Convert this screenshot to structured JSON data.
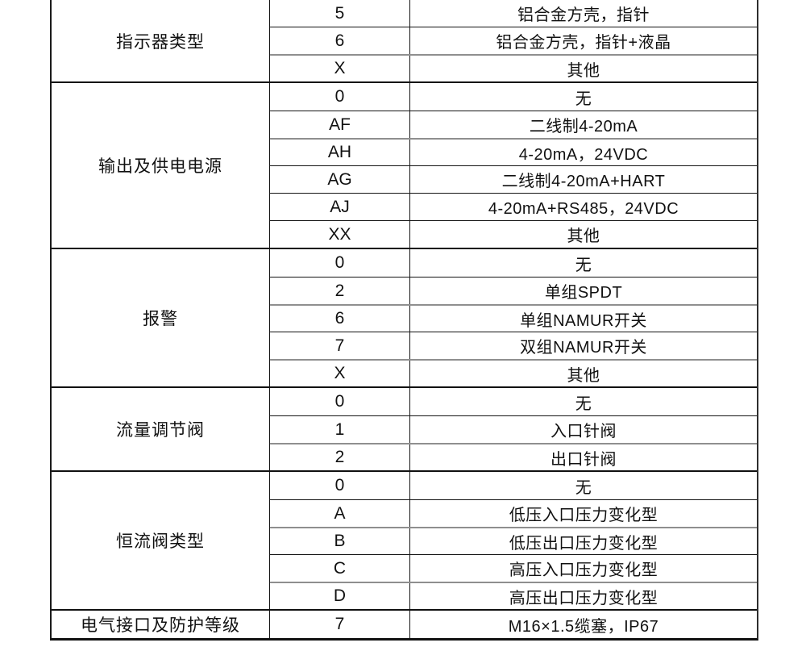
{
  "table": {
    "sections": [
      {
        "category": "指示器类型",
        "rows": [
          {
            "code": "5",
            "desc": "铝合金方壳，指针"
          },
          {
            "code": "6",
            "desc": "铝合金方壳，指针+液晶"
          },
          {
            "code": "X",
            "desc": "其他"
          }
        ]
      },
      {
        "category": "输出及供电电源",
        "rows": [
          {
            "code": "0",
            "desc": "无"
          },
          {
            "code": "AF",
            "desc": "二线制4-20mA"
          },
          {
            "code": "AH",
            "desc": "4-20mA，24VDC"
          },
          {
            "code": "AG",
            "desc": "二线制4-20mA+HART"
          },
          {
            "code": "AJ",
            "desc": "4-20mA+RS485，24VDC"
          },
          {
            "code": "XX",
            "desc": "其他"
          }
        ]
      },
      {
        "category": "报警",
        "rows": [
          {
            "code": "0",
            "desc": "无"
          },
          {
            "code": "2",
            "desc": "单组SPDT"
          },
          {
            "code": "6",
            "desc": "单组NAMUR开关"
          },
          {
            "code": "7",
            "desc": "双组NAMUR开关"
          },
          {
            "code": "X",
            "desc": "其他"
          }
        ]
      },
      {
        "category": "流量调节阀",
        "rows": [
          {
            "code": "0",
            "desc": "无"
          },
          {
            "code": "1",
            "desc": "入口针阀"
          },
          {
            "code": "2",
            "desc": "出口针阀"
          }
        ]
      },
      {
        "category": "恒流阀类型",
        "rows": [
          {
            "code": "0",
            "desc": "无"
          },
          {
            "code": "A",
            "desc": "低压入口压力变化型"
          },
          {
            "code": "B",
            "desc": "低压出口压力变化型"
          },
          {
            "code": "C",
            "desc": "高压入口压力变化型"
          },
          {
            "code": "D",
            "desc": "高压出口压力变化型"
          }
        ]
      },
      {
        "category": "电气接口及防护等级",
        "rows": [
          {
            "code": "7",
            "desc": "M16×1.5缆塞，IP67"
          }
        ]
      }
    ]
  }
}
